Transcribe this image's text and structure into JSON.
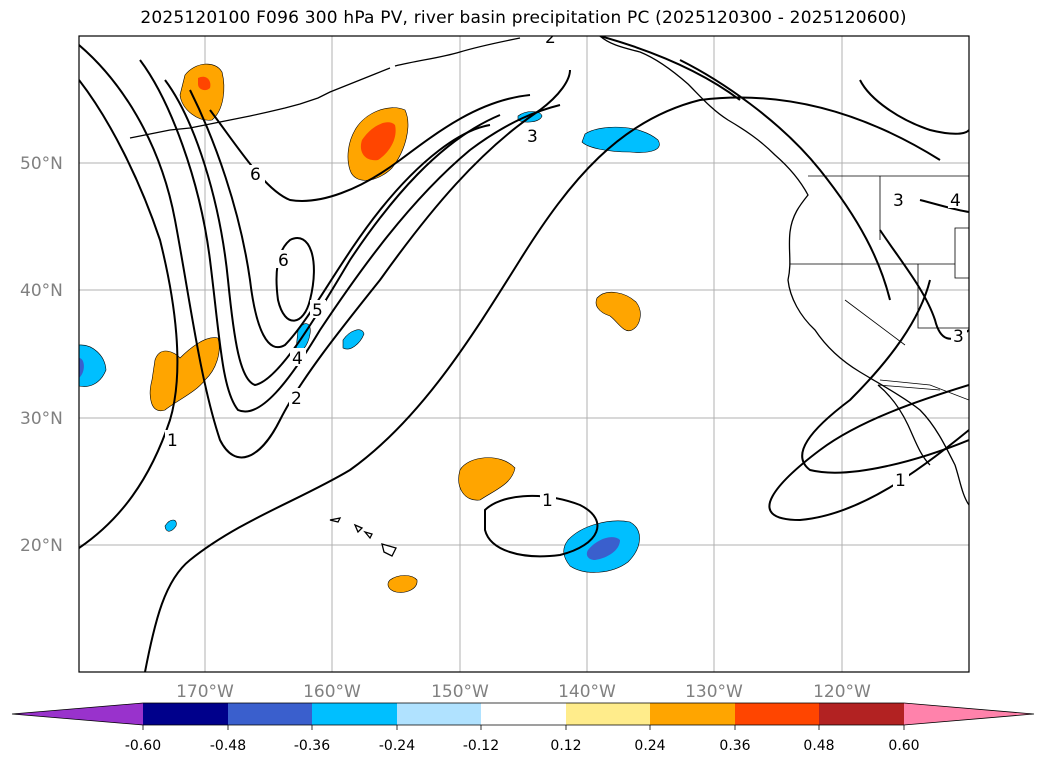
{
  "title": "2025120100 F096 300 hPa PV, river basin precipitation PC (2025120300 - 2025120600)",
  "map": {
    "lat_labels": [
      {
        "lat": 50,
        "label": "50°N"
      },
      {
        "lat": 40,
        "label": "40°N"
      },
      {
        "lat": 30,
        "label": "30°N"
      },
      {
        "lat": 20,
        "label": "20°N"
      }
    ],
    "lon_labels": [
      {
        "lon": -170,
        "label": "170°W"
      },
      {
        "lon": -160,
        "label": "160°W"
      },
      {
        "lon": -150,
        "label": "150°W"
      },
      {
        "lon": -140,
        "label": "140°W"
      },
      {
        "lon": -130,
        "label": "130°W"
      },
      {
        "lon": -120,
        "label": "120°W"
      }
    ],
    "extent": {
      "lon_min": -180,
      "lon_max": -110,
      "lat_min": 10,
      "lat_max": 60
    },
    "contour_labels": [
      "2",
      "6",
      "3",
      "6",
      "5",
      "4",
      "2",
      "1",
      "1",
      "1",
      "3",
      "4",
      "3"
    ]
  },
  "colorbar": {
    "colors": [
      "#9932cc",
      "#00008b",
      "#3a5fcd",
      "#00bfff",
      "#b0e2ff",
      "#ffffff",
      "#ffec8b",
      "#ffa500",
      "#ff4500",
      "#b22222",
      "#ff82ab"
    ],
    "ticks": [
      "-0.60",
      "-0.48",
      "-0.36",
      "-0.24",
      "-0.12",
      "0.12",
      "0.24",
      "0.36",
      "0.48",
      "0.60"
    ]
  }
}
